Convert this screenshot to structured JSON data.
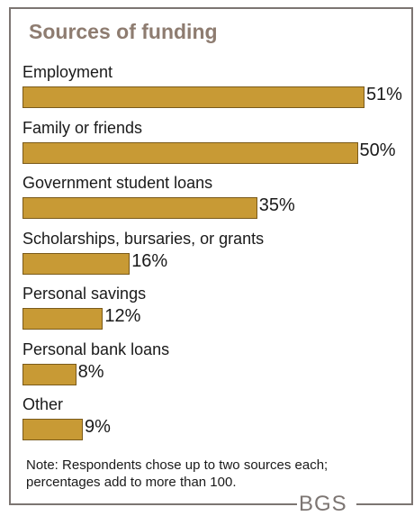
{
  "chart_data": {
    "type": "bar",
    "orientation": "horizontal",
    "title": "Sources of funding",
    "categories": [
      "Employment",
      "Family or friends",
      "Government student loans",
      "Scholarships, bursaries, or grants",
      "Personal savings",
      "Personal bank loans",
      "Other"
    ],
    "values": [
      51,
      50,
      35,
      16,
      12,
      8,
      9
    ],
    "value_labels": [
      "51%",
      "50%",
      "35%",
      "16%",
      "12%",
      "8%",
      "9%"
    ],
    "unit": "%",
    "note": "Note: Respondents chose up to two sources each; percentages add to more than 100.",
    "grid": false,
    "bar_color": "#c89a35"
  },
  "logo_text": "BGS",
  "colors": {
    "title": "#8e7c70",
    "frame": "#7c7572",
    "bar": "#c89a35",
    "bar_border": "#7a5a1a"
  }
}
